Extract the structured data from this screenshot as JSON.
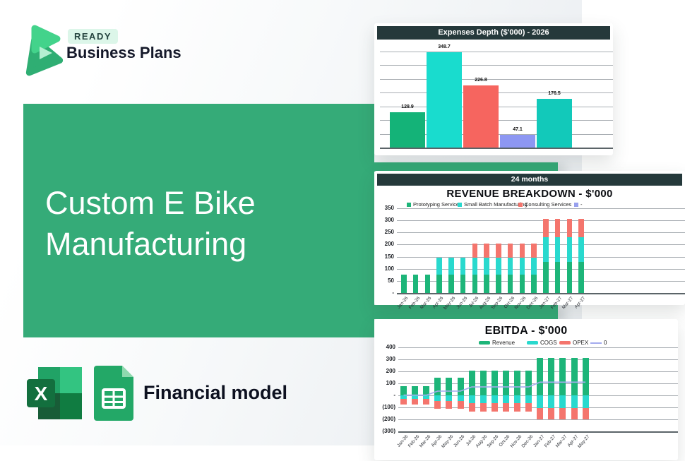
{
  "brand": {
    "badge": "READY",
    "name": "Business Plans"
  },
  "hero": {
    "title": "Custom E Bike Manufacturing"
  },
  "footer": {
    "label": "Financial model",
    "icons": [
      "excel-icon",
      "google-sheets-icon"
    ]
  },
  "colors": {
    "hero_green": "#35ab78",
    "card_header_dark": "#25393b",
    "page_background": "#f2f4f6",
    "logo_light_green": "#43d38b",
    "logo_dark_green": "#2fae73"
  },
  "chart_data": [
    {
      "type": "bar",
      "title": "Expenses Depth ($'000) - 2026",
      "values": [
        128.9,
        348.7,
        226.8,
        47.1,
        176.5
      ],
      "data_labels": [
        "128.9",
        "348.7",
        "226.8",
        "47.1",
        "176.5"
      ],
      "bar_colors": [
        "#14b378",
        "#19dcce",
        "#f6655f",
        "#8d97f2",
        "#12c9ba"
      ],
      "ylim": [
        0,
        350
      ],
      "grid_step": 50,
      "grid": true,
      "legend_position": "none"
    },
    {
      "type": "stacked_bar",
      "header": "24 months",
      "title": "REVENUE BREAKDOWN - $'000",
      "yticks": [
        "350",
        "300",
        "250",
        "200",
        "150",
        "100",
        "50",
        "-"
      ],
      "ylim": [
        0,
        350
      ],
      "grid": true,
      "legend_position": "top",
      "categories": [
        "Jan-26",
        "Feb-26",
        "Mar-26",
        "Apr-26",
        "May-26",
        "Jun-26",
        "Jul-26",
        "Aug-26",
        "Sep-26",
        "Oct-26",
        "Nov-26",
        "Dec-26",
        "Jan-27",
        "Feb-27",
        "Mar-27",
        "Apr-27"
      ],
      "series": [
        {
          "name": "Prototyping Services",
          "color": "#1db579",
          "values": [
            75,
            75,
            75,
            75,
            75,
            75,
            75,
            75,
            75,
            75,
            75,
            75,
            128,
            128,
            128,
            128
          ]
        },
        {
          "name": "Small Batch Manufacturing",
          "color": "#29d9ce",
          "values": [
            0,
            0,
            0,
            70,
            70,
            70,
            70,
            70,
            70,
            70,
            70,
            70,
            102,
            102,
            102,
            102
          ]
        },
        {
          "name": "Consulting Services",
          "color": "#f4756d",
          "values": [
            0,
            0,
            0,
            0,
            0,
            0,
            60,
            60,
            60,
            60,
            60,
            60,
            77,
            77,
            77,
            77
          ]
        }
      ],
      "legend_extra": {
        "label": "-",
        "color": "#98a0ee"
      }
    },
    {
      "type": "stacked_bar_line",
      "title": "EBITDA - $'000",
      "yticks": [
        "400",
        "300",
        "200",
        "100",
        "-",
        "(100)",
        "(200)",
        "(300)"
      ],
      "ylim": [
        -300,
        400
      ],
      "grid": true,
      "legend_position": "top",
      "categories": [
        "Jan-26",
        "Feb-26",
        "Mar-26",
        "Apr-26",
        "May-26",
        "Jun-26",
        "Jul-26",
        "Aug-26",
        "Sep-26",
        "Oct-26",
        "Nov-26",
        "Dec-26",
        "Jan-27",
        "Feb-27",
        "Mar-27",
        "Apr-27",
        "May-27"
      ],
      "series": [
        {
          "name": "Revenue",
          "color": "#1db579",
          "values": [
            75,
            75,
            75,
            145,
            145,
            145,
            205,
            205,
            205,
            205,
            205,
            205,
            310,
            310,
            310,
            310,
            310
          ]
        },
        {
          "name": "COGS",
          "color": "#29d9ce",
          "values": [
            -30,
            -30,
            -30,
            -45,
            -45,
            -45,
            -65,
            -65,
            -65,
            -65,
            -65,
            -65,
            -105,
            -105,
            -105,
            -105,
            -105
          ]
        },
        {
          "name": "OPEX",
          "color": "#f4756d",
          "values": [
            -45,
            -45,
            -45,
            -65,
            -65,
            -65,
            -70,
            -70,
            -70,
            -70,
            -70,
            -70,
            -95,
            -95,
            -95,
            -95,
            -95
          ]
        }
      ],
      "line_series": {
        "name": "0",
        "color": "#a3abee",
        "values": [
          2,
          2,
          2,
          35,
          35,
          35,
          70,
          70,
          70,
          70,
          70,
          70,
          110,
          110,
          110,
          110,
          110
        ]
      }
    }
  ]
}
